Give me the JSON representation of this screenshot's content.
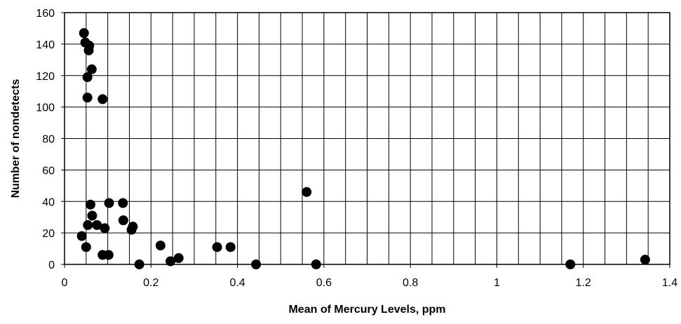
{
  "chart_data": {
    "type": "scatter",
    "title": "",
    "xlabel": "Mean of Mercury Levels, ppm",
    "ylabel": "Number of nondetects",
    "xlim": [
      0,
      1.4
    ],
    "ylim": [
      0,
      160
    ],
    "x_ticks": [
      "0",
      "0.2",
      "0.4",
      "0.6",
      "0.8",
      "1",
      "1.2",
      "1.4"
    ],
    "y_ticks": [
      "0",
      "20",
      "40",
      "60",
      "80",
      "100",
      "120",
      "140",
      "160"
    ],
    "grid": true,
    "legend": "none",
    "marker_color": "#000000",
    "series": [
      {
        "points": [
          {
            "x": 0.045,
            "y": 147
          },
          {
            "x": 0.048,
            "y": 141
          },
          {
            "x": 0.057,
            "y": 139
          },
          {
            "x": 0.056,
            "y": 136
          },
          {
            "x": 0.063,
            "y": 124
          },
          {
            "x": 0.053,
            "y": 119
          },
          {
            "x": 0.053,
            "y": 106
          },
          {
            "x": 0.088,
            "y": 105
          },
          {
            "x": 0.56,
            "y": 46
          },
          {
            "x": 0.06,
            "y": 38
          },
          {
            "x": 0.103,
            "y": 39
          },
          {
            "x": 0.135,
            "y": 39
          },
          {
            "x": 0.064,
            "y": 31
          },
          {
            "x": 0.136,
            "y": 28
          },
          {
            "x": 0.054,
            "y": 25
          },
          {
            "x": 0.075,
            "y": 25
          },
          {
            "x": 0.158,
            "y": 24
          },
          {
            "x": 0.155,
            "y": 22
          },
          {
            "x": 0.093,
            "y": 23
          },
          {
            "x": 0.04,
            "y": 18
          },
          {
            "x": 0.222,
            "y": 12
          },
          {
            "x": 0.05,
            "y": 11
          },
          {
            "x": 0.353,
            "y": 11
          },
          {
            "x": 0.384,
            "y": 11
          },
          {
            "x": 0.088,
            "y": 6
          },
          {
            "x": 0.102,
            "y": 6
          },
          {
            "x": 0.264,
            "y": 4
          },
          {
            "x": 0.245,
            "y": 2
          },
          {
            "x": 1.343,
            "y": 3
          },
          {
            "x": 0.173,
            "y": 0
          },
          {
            "x": 0.443,
            "y": 0
          },
          {
            "x": 0.582,
            "y": 0
          },
          {
            "x": 1.17,
            "y": 0
          }
        ]
      }
    ]
  }
}
